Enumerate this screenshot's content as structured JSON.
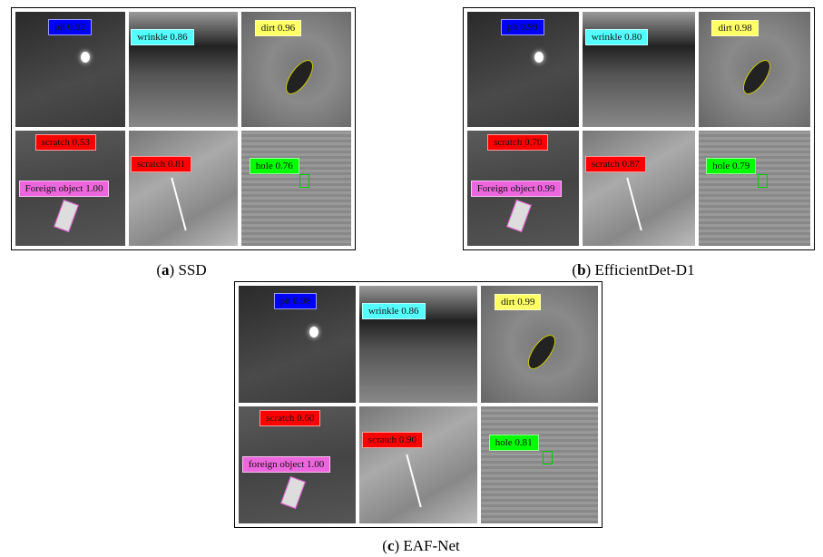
{
  "panels": [
    {
      "caption": [
        "(",
        "a",
        ") SSD"
      ],
      "tiles": [
        {
          "labels": [
            {
              "text": "pit 0.92",
              "color": "#0000ff"
            }
          ]
        },
        {
          "labels": [
            {
              "text": "wrinkle 0.86",
              "color": "#55ffff"
            }
          ]
        },
        {
          "labels": [
            {
              "text": "dirt 0.96",
              "color": "#ffff66"
            }
          ]
        },
        {
          "labels": [
            {
              "text": "scratch 0.53",
              "color": "#ff0000"
            },
            {
              "text": "Foreign object 1.00",
              "color": "#ee66dd"
            }
          ]
        },
        {
          "labels": [
            {
              "text": "scratch 0.81",
              "color": "#ff0000"
            }
          ]
        },
        {
          "labels": [
            {
              "text": "hole 0.76",
              "color": "#00ff00"
            }
          ]
        }
      ]
    },
    {
      "caption": [
        "(",
        "b",
        ") EfficientDet-D1"
      ],
      "tiles": [
        {
          "labels": [
            {
              "text": "pit 0.99",
              "color": "#0000ff"
            }
          ]
        },
        {
          "labels": [
            {
              "text": "wrinkle 0.80",
              "color": "#55ffff"
            }
          ]
        },
        {
          "labels": [
            {
              "text": "dirt 0.98",
              "color": "#ffff66"
            }
          ]
        },
        {
          "labels": [
            {
              "text": "scratch 0.70",
              "color": "#ff0000"
            },
            {
              "text": "Foreign object 0.99",
              "color": "#ee66dd"
            }
          ]
        },
        {
          "labels": [
            {
              "text": "scratch 0.87",
              "color": "#ff0000"
            }
          ]
        },
        {
          "labels": [
            {
              "text": "hole 0.79",
              "color": "#00ff00"
            }
          ]
        }
      ]
    },
    {
      "caption": [
        "(",
        "c",
        ") EAF-Net"
      ],
      "tiles": [
        {
          "labels": [
            {
              "text": "pit 0.98",
              "color": "#0000ff"
            }
          ]
        },
        {
          "labels": [
            {
              "text": "wrinkle 0.86",
              "color": "#55ffff"
            }
          ]
        },
        {
          "labels": [
            {
              "text": "dirt 0.99",
              "color": "#ffff66"
            }
          ]
        },
        {
          "labels": [
            {
              "text": "scratch 0.60",
              "color": "#ff0000"
            },
            {
              "text": "foreign object 1.00",
              "color": "#ee66dd"
            }
          ]
        },
        {
          "labels": [
            {
              "text": "scratch 0.90",
              "color": "#ff0000"
            }
          ]
        },
        {
          "labels": [
            {
              "text": "hole 0.81",
              "color": "#00ff00"
            }
          ]
        }
      ]
    }
  ]
}
